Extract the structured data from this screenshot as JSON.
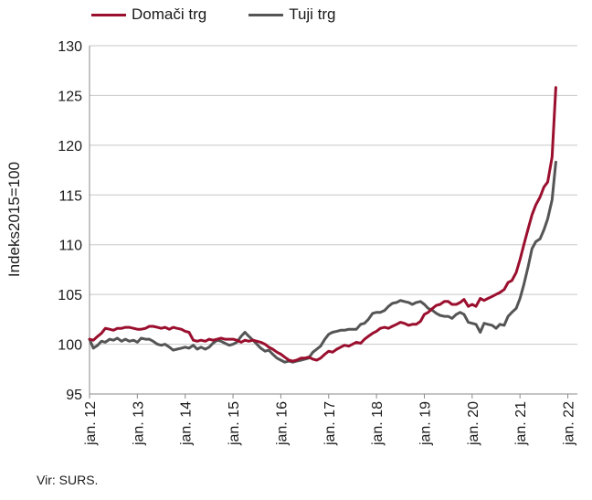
{
  "chart_data": {
    "type": "line",
    "title": "",
    "xlabel": "",
    "ylabel": "Indeks2015=100",
    "ylim": [
      95,
      130
    ],
    "yticks": [
      "95",
      "100",
      "105",
      "110",
      "115",
      "120",
      "125",
      "130"
    ],
    "xlim": [
      2012.0,
      2022.2
    ],
    "xticks": [
      {
        "x": 2012,
        "label": "jan. 12"
      },
      {
        "x": 2013,
        "label": "jan. 13"
      },
      {
        "x": 2014,
        "label": "jan. 14"
      },
      {
        "x": 2015,
        "label": "jan. 15"
      },
      {
        "x": 2016,
        "label": "jan. 16"
      },
      {
        "x": 2017,
        "label": "jan. 17"
      },
      {
        "x": 2018,
        "label": "jan. 18"
      },
      {
        "x": 2019,
        "label": "jan. 19"
      },
      {
        "x": 2020,
        "label": "jan. 20"
      },
      {
        "x": 2021,
        "label": "jan. 21"
      },
      {
        "x": 2022,
        "label": "jan. 22"
      }
    ],
    "grid": "horizontal",
    "legend": "top-left",
    "series": [
      {
        "name": "Domači trg",
        "color": "#9b0f2e",
        "points": [
          [
            2012.0,
            100.5
          ],
          [
            2012.08,
            100.4
          ],
          [
            2012.17,
            100.8
          ],
          [
            2012.25,
            101.1
          ],
          [
            2012.33,
            101.6
          ],
          [
            2012.42,
            101.5
          ],
          [
            2012.5,
            101.4
          ],
          [
            2012.58,
            101.6
          ],
          [
            2012.67,
            101.6
          ],
          [
            2012.75,
            101.7
          ],
          [
            2012.83,
            101.7
          ],
          [
            2012.92,
            101.6
          ],
          [
            2013.0,
            101.5
          ],
          [
            2013.08,
            101.5
          ],
          [
            2013.17,
            101.6
          ],
          [
            2013.25,
            101.8
          ],
          [
            2013.33,
            101.8
          ],
          [
            2013.42,
            101.7
          ],
          [
            2013.5,
            101.6
          ],
          [
            2013.58,
            101.7
          ],
          [
            2013.67,
            101.5
          ],
          [
            2013.75,
            101.7
          ],
          [
            2013.83,
            101.6
          ],
          [
            2013.92,
            101.5
          ],
          [
            2014.0,
            101.3
          ],
          [
            2014.08,
            101.2
          ],
          [
            2014.17,
            100.4
          ],
          [
            2014.25,
            100.3
          ],
          [
            2014.33,
            100.4
          ],
          [
            2014.42,
            100.3
          ],
          [
            2014.5,
            100.5
          ],
          [
            2014.58,
            100.4
          ],
          [
            2014.67,
            100.5
          ],
          [
            2014.75,
            100.6
          ],
          [
            2014.83,
            100.5
          ],
          [
            2014.92,
            100.5
          ],
          [
            2015.0,
            100.5
          ],
          [
            2015.08,
            100.4
          ],
          [
            2015.17,
            100.2
          ],
          [
            2015.25,
            100.4
          ],
          [
            2015.33,
            100.3
          ],
          [
            2015.42,
            100.4
          ],
          [
            2015.5,
            100.3
          ],
          [
            2015.58,
            100.2
          ],
          [
            2015.67,
            100.0
          ],
          [
            2015.75,
            99.7
          ],
          [
            2015.83,
            99.5
          ],
          [
            2015.92,
            99.2
          ],
          [
            2016.0,
            99.0
          ],
          [
            2016.08,
            98.7
          ],
          [
            2016.17,
            98.4
          ],
          [
            2016.25,
            98.3
          ],
          [
            2016.33,
            98.4
          ],
          [
            2016.42,
            98.6
          ],
          [
            2016.5,
            98.6
          ],
          [
            2016.58,
            98.7
          ],
          [
            2016.67,
            98.5
          ],
          [
            2016.75,
            98.4
          ],
          [
            2016.83,
            98.6
          ],
          [
            2016.92,
            99.0
          ],
          [
            2017.0,
            99.3
          ],
          [
            2017.08,
            99.2
          ],
          [
            2017.17,
            99.5
          ],
          [
            2017.25,
            99.7
          ],
          [
            2017.33,
            99.9
          ],
          [
            2017.42,
            99.8
          ],
          [
            2017.5,
            100.0
          ],
          [
            2017.58,
            100.2
          ],
          [
            2017.67,
            100.1
          ],
          [
            2017.75,
            100.5
          ],
          [
            2017.83,
            100.8
          ],
          [
            2017.92,
            101.1
          ],
          [
            2018.0,
            101.3
          ],
          [
            2018.08,
            101.6
          ],
          [
            2018.17,
            101.7
          ],
          [
            2018.25,
            101.6
          ],
          [
            2018.33,
            101.8
          ],
          [
            2018.42,
            102.0
          ],
          [
            2018.5,
            102.2
          ],
          [
            2018.58,
            102.1
          ],
          [
            2018.67,
            101.9
          ],
          [
            2018.75,
            102.0
          ],
          [
            2018.83,
            102.0
          ],
          [
            2018.92,
            102.3
          ],
          [
            2019.0,
            103.0
          ],
          [
            2019.08,
            103.2
          ],
          [
            2019.17,
            103.6
          ],
          [
            2019.25,
            103.9
          ],
          [
            2019.33,
            104.0
          ],
          [
            2019.42,
            104.3
          ],
          [
            2019.5,
            104.3
          ],
          [
            2019.58,
            104.0
          ],
          [
            2019.67,
            104.0
          ],
          [
            2019.75,
            104.2
          ],
          [
            2019.83,
            104.5
          ],
          [
            2019.92,
            103.8
          ],
          [
            2020.0,
            104.0
          ],
          [
            2020.08,
            103.8
          ],
          [
            2020.17,
            104.6
          ],
          [
            2020.25,
            104.4
          ],
          [
            2020.33,
            104.6
          ],
          [
            2020.42,
            104.8
          ],
          [
            2020.5,
            105.0
          ],
          [
            2020.58,
            105.2
          ],
          [
            2020.67,
            105.5
          ],
          [
            2020.75,
            106.2
          ],
          [
            2020.83,
            106.4
          ],
          [
            2020.92,
            107.2
          ],
          [
            2021.0,
            108.5
          ],
          [
            2021.08,
            110.0
          ],
          [
            2021.17,
            111.6
          ],
          [
            2021.25,
            113.0
          ],
          [
            2021.33,
            114.0
          ],
          [
            2021.42,
            114.8
          ],
          [
            2021.5,
            115.8
          ],
          [
            2021.58,
            116.3
          ],
          [
            2021.67,
            118.8
          ],
          [
            2021.75,
            125.8
          ]
        ]
      },
      {
        "name": "Tuji trg",
        "color": "#555555",
        "points": [
          [
            2012.0,
            100.5
          ],
          [
            2012.08,
            99.6
          ],
          [
            2012.17,
            99.9
          ],
          [
            2012.25,
            100.3
          ],
          [
            2012.33,
            100.2
          ],
          [
            2012.42,
            100.5
          ],
          [
            2012.5,
            100.4
          ],
          [
            2012.58,
            100.6
          ],
          [
            2012.67,
            100.3
          ],
          [
            2012.75,
            100.5
          ],
          [
            2012.83,
            100.3
          ],
          [
            2012.92,
            100.4
          ],
          [
            2013.0,
            100.2
          ],
          [
            2013.08,
            100.6
          ],
          [
            2013.17,
            100.5
          ],
          [
            2013.25,
            100.5
          ],
          [
            2013.33,
            100.3
          ],
          [
            2013.42,
            100.0
          ],
          [
            2013.5,
            99.9
          ],
          [
            2013.58,
            100.0
          ],
          [
            2013.67,
            99.7
          ],
          [
            2013.75,
            99.4
          ],
          [
            2013.83,
            99.5
          ],
          [
            2013.92,
            99.6
          ],
          [
            2014.0,
            99.7
          ],
          [
            2014.08,
            99.6
          ],
          [
            2014.17,
            99.9
          ],
          [
            2014.25,
            99.5
          ],
          [
            2014.33,
            99.7
          ],
          [
            2014.42,
            99.5
          ],
          [
            2014.5,
            99.7
          ],
          [
            2014.58,
            100.1
          ],
          [
            2014.67,
            100.4
          ],
          [
            2014.75,
            100.3
          ],
          [
            2014.83,
            100.1
          ],
          [
            2014.92,
            99.9
          ],
          [
            2015.0,
            100.0
          ],
          [
            2015.08,
            100.2
          ],
          [
            2015.17,
            100.8
          ],
          [
            2015.25,
            101.2
          ],
          [
            2015.33,
            100.8
          ],
          [
            2015.42,
            100.4
          ],
          [
            2015.5,
            100.0
          ],
          [
            2015.58,
            99.6
          ],
          [
            2015.67,
            99.3
          ],
          [
            2015.75,
            99.4
          ],
          [
            2015.83,
            99.0
          ],
          [
            2015.92,
            98.6
          ],
          [
            2016.0,
            98.4
          ],
          [
            2016.08,
            98.2
          ],
          [
            2016.17,
            98.3
          ],
          [
            2016.25,
            98.2
          ],
          [
            2016.33,
            98.3
          ],
          [
            2016.42,
            98.4
          ],
          [
            2016.5,
            98.5
          ],
          [
            2016.58,
            98.6
          ],
          [
            2016.67,
            99.2
          ],
          [
            2016.75,
            99.5
          ],
          [
            2016.83,
            99.8
          ],
          [
            2016.92,
            100.5
          ],
          [
            2017.0,
            101.0
          ],
          [
            2017.08,
            101.2
          ],
          [
            2017.17,
            101.3
          ],
          [
            2017.25,
            101.4
          ],
          [
            2017.33,
            101.4
          ],
          [
            2017.42,
            101.5
          ],
          [
            2017.5,
            101.5
          ],
          [
            2017.58,
            101.5
          ],
          [
            2017.67,
            102.0
          ],
          [
            2017.75,
            102.1
          ],
          [
            2017.83,
            102.5
          ],
          [
            2017.92,
            103.1
          ],
          [
            2018.0,
            103.2
          ],
          [
            2018.08,
            103.2
          ],
          [
            2018.17,
            103.4
          ],
          [
            2018.25,
            103.8
          ],
          [
            2018.33,
            104.1
          ],
          [
            2018.42,
            104.2
          ],
          [
            2018.5,
            104.4
          ],
          [
            2018.58,
            104.3
          ],
          [
            2018.67,
            104.2
          ],
          [
            2018.75,
            104.0
          ],
          [
            2018.83,
            104.2
          ],
          [
            2018.92,
            104.3
          ],
          [
            2019.0,
            104.0
          ],
          [
            2019.08,
            103.6
          ],
          [
            2019.17,
            103.4
          ],
          [
            2019.25,
            103.1
          ],
          [
            2019.33,
            102.9
          ],
          [
            2019.42,
            102.8
          ],
          [
            2019.5,
            102.8
          ],
          [
            2019.58,
            102.6
          ],
          [
            2019.67,
            103.0
          ],
          [
            2019.75,
            103.2
          ],
          [
            2019.83,
            103.0
          ],
          [
            2019.92,
            102.2
          ],
          [
            2020.0,
            102.1
          ],
          [
            2020.08,
            102.0
          ],
          [
            2020.17,
            101.2
          ],
          [
            2020.25,
            102.1
          ],
          [
            2020.33,
            102.0
          ],
          [
            2020.42,
            101.9
          ],
          [
            2020.5,
            101.6
          ],
          [
            2020.58,
            102.0
          ],
          [
            2020.67,
            101.9
          ],
          [
            2020.75,
            102.8
          ],
          [
            2020.83,
            103.2
          ],
          [
            2020.92,
            103.6
          ],
          [
            2021.0,
            104.6
          ],
          [
            2021.08,
            106.0
          ],
          [
            2021.17,
            107.8
          ],
          [
            2021.25,
            109.6
          ],
          [
            2021.33,
            110.3
          ],
          [
            2021.42,
            110.6
          ],
          [
            2021.5,
            111.5
          ],
          [
            2021.58,
            112.6
          ],
          [
            2021.67,
            114.5
          ],
          [
            2021.75,
            118.3
          ]
        ]
      }
    ]
  },
  "source_text": "Vir: SURS."
}
